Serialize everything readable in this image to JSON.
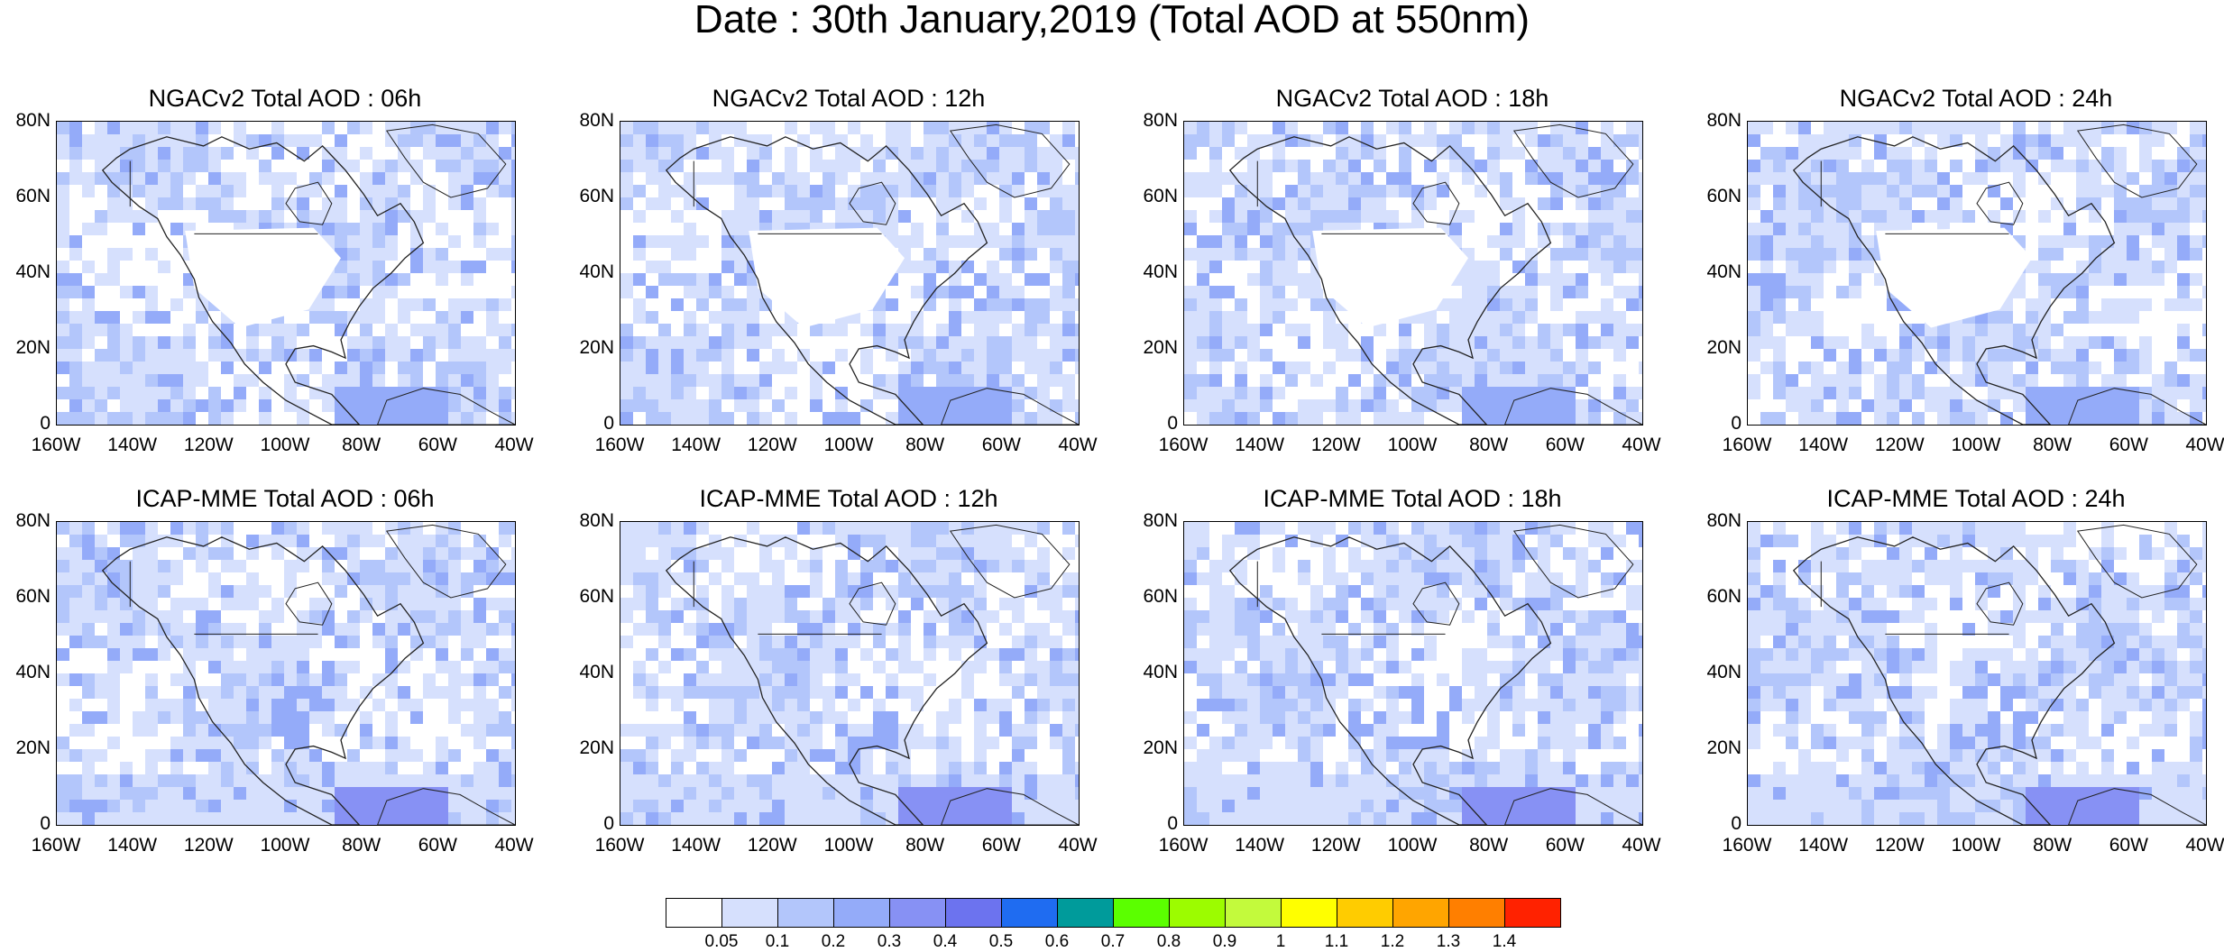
{
  "main_title": "Date : 30th January,2019 (Total AOD at 550nm)",
  "panels": [
    {
      "title": "NGACv2 Total AOD : 06h"
    },
    {
      "title": "NGACv2 Total AOD : 12h"
    },
    {
      "title": "NGACv2 Total AOD : 18h"
    },
    {
      "title": "NGACv2 Total AOD : 24h"
    },
    {
      "title": "ICAP-MME Total AOD : 06h"
    },
    {
      "title": "ICAP-MME Total AOD : 12h"
    },
    {
      "title": "ICAP-MME Total AOD : 18h"
    },
    {
      "title": "ICAP-MME Total AOD : 24h"
    }
  ],
  "y_ticks": [
    "80N",
    "60N",
    "40N",
    "20N",
    "0"
  ],
  "x_ticks": [
    "160W",
    "140W",
    "120W",
    "100W",
    "80W",
    "60W",
    "40W"
  ],
  "colorbar": {
    "colors": [
      "#ffffff",
      "#d6e0fd",
      "#b3c6fb",
      "#94abf9",
      "#8791f4",
      "#6c73ef",
      "#1f6cf1",
      "#009b9b",
      "#5bff00",
      "#9cfc00",
      "#c3fa3c",
      "#ffff00",
      "#ffcc00",
      "#ffa500",
      "#ff7f00",
      "#ff2200"
    ],
    "labels": [
      "0.05",
      "0.1",
      "0.2",
      "0.3",
      "0.4",
      "0.5",
      "0.6",
      "0.7",
      "0.8",
      "0.9",
      "1",
      "1.1",
      "1.2",
      "1.3",
      "1.4"
    ]
  }
}
